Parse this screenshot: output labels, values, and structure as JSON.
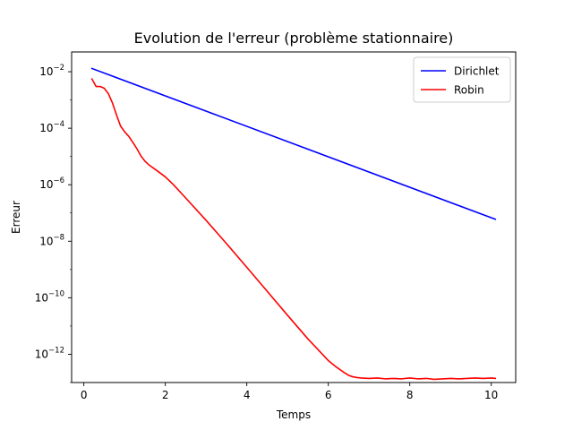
{
  "chart_data": {
    "type": "line",
    "title": "Evolution de l'erreur (problème stationnaire)",
    "xlabel": "Temps",
    "ylabel": "Erreur",
    "xlim": [
      -0.3,
      10.6
    ],
    "ylim": [
      1e-13,
      0.05
    ],
    "yscale": "log",
    "xticks": [
      0,
      2,
      4,
      6,
      8,
      10
    ],
    "yticks": [
      {
        "value": 1e-12,
        "base": "10",
        "exp": "−12"
      },
      {
        "value": 1e-10,
        "base": "10",
        "exp": "−10"
      },
      {
        "value": 1e-08,
        "base": "10",
        "exp": "−8"
      },
      {
        "value": 1e-06,
        "base": "10",
        "exp": "−6"
      },
      {
        "value": 0.0001,
        "base": "10",
        "exp": "−4"
      },
      {
        "value": 0.01,
        "base": "10",
        "exp": "−2"
      }
    ],
    "grid": false,
    "legend_position": "top-right",
    "series": [
      {
        "name": "Dirichlet",
        "color": "#0000ff",
        "x": [
          0.2,
          10.1
        ],
        "y": [
          0.013,
          6e-08
        ]
      },
      {
        "name": "Robin",
        "color": "#ff0000",
        "x": [
          0.2,
          0.3,
          0.4,
          0.5,
          0.6,
          0.7,
          0.8,
          0.9,
          1.0,
          1.1,
          1.2,
          1.3,
          1.4,
          1.5,
          1.6,
          1.8,
          2.0,
          2.2,
          2.5,
          3.0,
          3.5,
          4.0,
          4.5,
          5.0,
          5.5,
          6.0,
          6.2,
          6.4,
          6.5,
          6.6,
          6.7,
          6.8,
          7.0,
          7.2,
          7.4,
          7.6,
          7.8,
          8.0,
          8.2,
          8.4,
          8.6,
          8.8,
          9.0,
          9.2,
          9.4,
          9.6,
          9.8,
          10.0,
          10.1
        ],
        "y": [
          0.0055,
          0.003,
          0.003,
          0.0026,
          0.0017,
          0.0008,
          0.0003,
          0.00012,
          7.5e-05,
          5.2e-05,
          3.2e-05,
          1.9e-05,
          1.05e-05,
          6.8e-06,
          5e-06,
          3.1e-06,
          1.9e-06,
          1e-06,
          3.4e-07,
          5.5e-08,
          8.3e-09,
          1.2e-09,
          1.7e-10,
          2.4e-11,
          3.5e-12,
          6e-13,
          3.5e-13,
          2.2e-13,
          1.8e-13,
          1.6e-13,
          1.5e-13,
          1.45e-13,
          1.4e-13,
          1.45e-13,
          1.35e-13,
          1.4e-13,
          1.35e-13,
          1.45e-13,
          1.35e-13,
          1.4e-13,
          1.3e-13,
          1.35e-13,
          1.4e-13,
          1.35e-13,
          1.4e-13,
          1.45e-13,
          1.4e-13,
          1.45e-13,
          1.4e-13
        ]
      }
    ]
  }
}
